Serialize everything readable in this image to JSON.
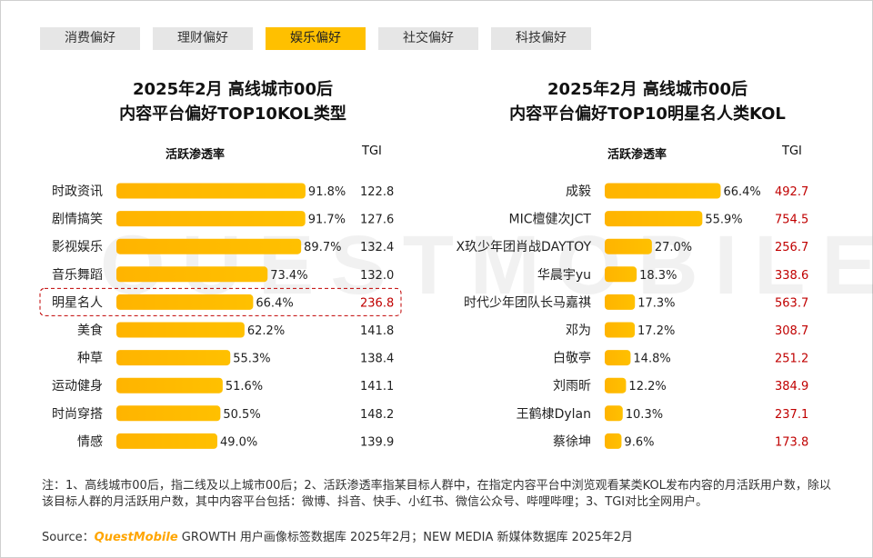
{
  "tabs": [
    {
      "label": "消费偏好",
      "active": false
    },
    {
      "label": "理财偏好",
      "active": false
    },
    {
      "label": "娱乐偏好",
      "active": true
    },
    {
      "label": "社交偏好",
      "active": false
    },
    {
      "label": "科技偏好",
      "active": false
    }
  ],
  "watermark": "QUESTMOBILE",
  "colors": {
    "bar": "#ffc000",
    "tgi_red": "#c00000",
    "highlight_border": "#c00000"
  },
  "chart_data": [
    {
      "type": "bar",
      "orientation": "horizontal",
      "title_line1": "2025年2月 高线城市00后",
      "title_line2": "内容平台偏好TOP10KOL类型",
      "col_header_rate": "活跃渗透率",
      "col_header_tgi": "TGI",
      "categories": [
        "时政资讯",
        "剧情搞笑",
        "影视娱乐",
        "音乐舞蹈",
        "明星名人",
        "美食",
        "种草",
        "运动健身",
        "时尚穿搭",
        "情感"
      ],
      "values": [
        91.8,
        91.7,
        89.7,
        73.4,
        66.4,
        62.2,
        55.3,
        51.6,
        50.5,
        49.0
      ],
      "value_labels": [
        "91.8%",
        "91.7%",
        "89.7%",
        "73.4%",
        "66.4%",
        "62.2%",
        "55.3%",
        "51.6%",
        "50.5%",
        "49.0%"
      ],
      "tgi": [
        "122.8",
        "127.6",
        "132.4",
        "132.0",
        "236.8",
        "141.8",
        "138.4",
        "141.1",
        "148.2",
        "139.9"
      ],
      "tgi_red": [
        false,
        false,
        false,
        false,
        true,
        false,
        false,
        false,
        false,
        false
      ],
      "highlight_index": 4,
      "xlim": [
        0,
        100
      ]
    },
    {
      "type": "bar",
      "orientation": "horizontal",
      "title_line1": "2025年2月 高线城市00后",
      "title_line2": "内容平台偏好TOP10明星名人类KOL",
      "col_header_rate": "活跃渗透率",
      "col_header_tgi": "TGI",
      "categories": [
        "成毅",
        "MIC檀健次JCT",
        "X玖少年团肖战DAYTOY",
        "华晨宇yu",
        "时代少年团队长马嘉祺",
        "邓为",
        "白敬亭",
        "刘雨昕",
        "王鹤棣Dylan",
        "蔡徐坤"
      ],
      "values": [
        66.4,
        55.9,
        27.0,
        18.3,
        17.3,
        17.2,
        14.8,
        12.2,
        10.3,
        9.6
      ],
      "value_labels": [
        "66.4%",
        "55.9%",
        "27.0%",
        "18.3%",
        "17.3%",
        "17.2%",
        "14.8%",
        "12.2%",
        "10.3%",
        "9.6%"
      ],
      "tgi": [
        "492.7",
        "754.5",
        "256.7",
        "338.6",
        "563.7",
        "308.7",
        "251.2",
        "384.9",
        "237.1",
        "173.8"
      ],
      "tgi_red": [
        true,
        true,
        true,
        true,
        true,
        true,
        true,
        true,
        true,
        true
      ],
      "highlight_index": -1,
      "xlim": [
        0,
        70
      ]
    }
  ],
  "notes": "注：1、高线城市00后，指二线及以上城市00后；2、活跃渗透率指某目标人群中，在指定内容平台中浏览观看某类KOL发布内容的月活跃用户数，除以该目标人群的月活跃用户数，其中内容平台包括：微博、抖音、快手、小红书、微信公众号、哔哩哔哩；3、TGI对比全网用户。",
  "source": {
    "prefix": "Source：",
    "brand": "QuestMobile",
    "rest": " GROWTH 用户画像标签数据库 2025年2月；NEW MEDIA 新媒体数据库 2025年2月"
  }
}
